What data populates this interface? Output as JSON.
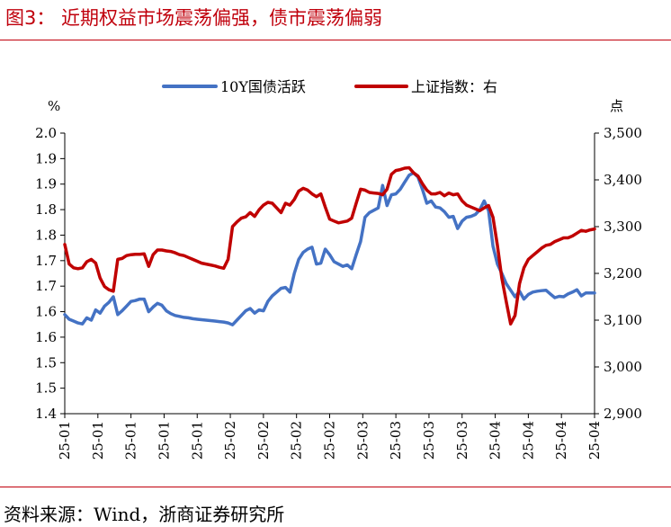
{
  "header": {
    "title": "图3：  近期权益市场震荡偏强，债市震荡偏弱"
  },
  "footer": {
    "source": "资料来源：Wind，浙商证券研究所"
  },
  "colors": {
    "series_10y": "#4472C4",
    "series_sh": "#C00000",
    "accent": "#C0000C"
  },
  "chart_data": {
    "type": "line",
    "legend_position": "top",
    "grid": false,
    "left_unit": "%",
    "right_unit": "点",
    "left_axis": {
      "ticks": [
        "2.0",
        "1.9",
        "1.9",
        "1.8",
        "1.8",
        "1.7",
        "1.7",
        "1.6",
        "1.6",
        "1.5",
        "1.5",
        "1.4"
      ],
      "ylim": [
        1.4,
        2.0
      ]
    },
    "right_axis": {
      "ticks": [
        "3,500",
        "3,400",
        "3,300",
        "3,200",
        "3,100",
        "3,000",
        "2,900"
      ],
      "ylim": [
        2900,
        3500
      ]
    },
    "x_ticks": [
      "25-01",
      "25-01",
      "25-01",
      "25-01",
      "25-01",
      "25-02",
      "25-02",
      "25-02",
      "25-02",
      "25-03",
      "25-03",
      "25-03",
      "25-03",
      "25-04",
      "25-04",
      "25-04",
      "25-04"
    ],
    "series": [
      {
        "name": "10Y国债活跃",
        "axis": "left",
        "points": [
          [
            0,
            1.612
          ],
          [
            1,
            1.602
          ],
          [
            2,
            1.598
          ],
          [
            3,
            1.594
          ],
          [
            4,
            1.592
          ],
          [
            5,
            1.605
          ],
          [
            6,
            1.6
          ],
          [
            7,
            1.622
          ],
          [
            8,
            1.615
          ],
          [
            9,
            1.63
          ],
          [
            10,
            1.638
          ],
          [
            11,
            1.65
          ],
          [
            12,
            1.612
          ],
          [
            13,
            1.62
          ],
          [
            14,
            1.63
          ],
          [
            15,
            1.64
          ],
          [
            16,
            1.642
          ],
          [
            17,
            1.645
          ],
          [
            18,
            1.645
          ],
          [
            19,
            1.618
          ],
          [
            20,
            1.628
          ],
          [
            21,
            1.636
          ],
          [
            22,
            1.632
          ],
          [
            23,
            1.62
          ],
          [
            24,
            1.614
          ],
          [
            25,
            1.61
          ],
          [
            26,
            1.608
          ],
          [
            27,
            1.606
          ],
          [
            28,
            1.605
          ],
          [
            29,
            1.603
          ],
          [
            30,
            1.602
          ],
          [
            31,
            1.601
          ],
          [
            32,
            1.6
          ],
          [
            33,
            1.599
          ],
          [
            34,
            1.598
          ],
          [
            35,
            1.597
          ],
          [
            36,
            1.596
          ],
          [
            37,
            1.594
          ],
          [
            38,
            1.59
          ],
          [
            39,
            1.6
          ],
          [
            40,
            1.61
          ],
          [
            41,
            1.62
          ],
          [
            42,
            1.625
          ],
          [
            43,
            1.615
          ],
          [
            44,
            1.622
          ],
          [
            45,
            1.62
          ],
          [
            46,
            1.64
          ],
          [
            47,
            1.652
          ],
          [
            48,
            1.66
          ],
          [
            49,
            1.668
          ],
          [
            50,
            1.67
          ],
          [
            51,
            1.66
          ],
          [
            52,
            1.7
          ],
          [
            53,
            1.73
          ],
          [
            54,
            1.745
          ],
          [
            55,
            1.752
          ],
          [
            56,
            1.756
          ],
          [
            57,
            1.72
          ],
          [
            58,
            1.722
          ],
          [
            59,
            1.752
          ],
          [
            60,
            1.74
          ],
          [
            61,
            1.725
          ],
          [
            62,
            1.72
          ],
          [
            63,
            1.715
          ],
          [
            64,
            1.718
          ],
          [
            65,
            1.71
          ],
          [
            66,
            1.74
          ],
          [
            67,
            1.768
          ],
          [
            68,
            1.82
          ],
          [
            69,
            1.83
          ],
          [
            70,
            1.835
          ],
          [
            71,
            1.84
          ],
          [
            72,
            1.888
          ],
          [
            73,
            1.845
          ],
          [
            74,
            1.868
          ],
          [
            75,
            1.87
          ],
          [
            76,
            1.88
          ],
          [
            77,
            1.895
          ],
          [
            78,
            1.91
          ],
          [
            79,
            1.915
          ],
          [
            80,
            1.906
          ],
          [
            81,
            1.88
          ],
          [
            82,
            1.85
          ],
          [
            83,
            1.855
          ],
          [
            84,
            1.842
          ],
          [
            85,
            1.84
          ],
          [
            86,
            1.832
          ],
          [
            87,
            1.82
          ],
          [
            88,
            1.822
          ],
          [
            89,
            1.796
          ],
          [
            90,
            1.812
          ],
          [
            91,
            1.82
          ],
          [
            92,
            1.822
          ],
          [
            93,
            1.826
          ],
          [
            94,
            1.836
          ],
          [
            95,
            1.855
          ],
          [
            96,
            1.834
          ],
          [
            97,
            1.758
          ],
          [
            98,
            1.72
          ],
          [
            99,
            1.7
          ],
          [
            100,
            1.678
          ],
          [
            101,
            1.664
          ],
          [
            102,
            1.65
          ],
          [
            103,
            1.662
          ],
          [
            104,
            1.645
          ],
          [
            105,
            1.655
          ],
          [
            106,
            1.66
          ],
          [
            107,
            1.662
          ],
          [
            108,
            1.663
          ],
          [
            109,
            1.664
          ],
          [
            110,
            1.656
          ],
          [
            111,
            1.648
          ],
          [
            112,
            1.651
          ],
          [
            113,
            1.65
          ],
          [
            114,
            1.656
          ],
          [
            115,
            1.66
          ],
          [
            116,
            1.665
          ],
          [
            117,
            1.652
          ],
          [
            118,
            1.658
          ],
          [
            119,
            1.658
          ],
          [
            120,
            1.658
          ]
        ]
      },
      {
        "name": "上证指数：右",
        "axis": "right",
        "points": [
          [
            0,
            3262
          ],
          [
            1,
            3220
          ],
          [
            2,
            3212
          ],
          [
            3,
            3210
          ],
          [
            4,
            3212
          ],
          [
            5,
            3225
          ],
          [
            6,
            3230
          ],
          [
            7,
            3222
          ],
          [
            8,
            3190
          ],
          [
            9,
            3172
          ],
          [
            10,
            3165
          ],
          [
            11,
            3162
          ],
          [
            12,
            3230
          ],
          [
            13,
            3232
          ],
          [
            14,
            3238
          ],
          [
            15,
            3240
          ],
          [
            16,
            3241
          ],
          [
            17,
            3241
          ],
          [
            18,
            3242
          ],
          [
            19,
            3215
          ],
          [
            20,
            3240
          ],
          [
            21,
            3250
          ],
          [
            22,
            3250
          ],
          [
            23,
            3248
          ],
          [
            24,
            3247
          ],
          [
            25,
            3244
          ],
          [
            26,
            3240
          ],
          [
            27,
            3238
          ],
          [
            28,
            3234
          ],
          [
            29,
            3230
          ],
          [
            30,
            3226
          ],
          [
            31,
            3222
          ],
          [
            32,
            3220
          ],
          [
            33,
            3218
          ],
          [
            34,
            3216
          ],
          [
            35,
            3213
          ],
          [
            36,
            3211
          ],
          [
            37,
            3230
          ],
          [
            38,
            3300
          ],
          [
            39,
            3310
          ],
          [
            40,
            3318
          ],
          [
            41,
            3321
          ],
          [
            42,
            3330
          ],
          [
            43,
            3322
          ],
          [
            44,
            3336
          ],
          [
            45,
            3346
          ],
          [
            46,
            3352
          ],
          [
            47,
            3350
          ],
          [
            48,
            3340
          ],
          [
            49,
            3330
          ],
          [
            50,
            3350
          ],
          [
            51,
            3346
          ],
          [
            52,
            3358
          ],
          [
            53,
            3376
          ],
          [
            54,
            3382
          ],
          [
            55,
            3378
          ],
          [
            56,
            3370
          ],
          [
            57,
            3364
          ],
          [
            58,
            3370
          ],
          [
            59,
            3342
          ],
          [
            60,
            3316
          ],
          [
            61,
            3312
          ],
          [
            62,
            3308
          ],
          [
            63,
            3310
          ],
          [
            64,
            3312
          ],
          [
            65,
            3318
          ],
          [
            66,
            3350
          ],
          [
            67,
            3380
          ],
          [
            68,
            3378
          ],
          [
            69,
            3373
          ],
          [
            70,
            3372
          ],
          [
            71,
            3371
          ],
          [
            72,
            3368
          ],
          [
            73,
            3380
          ],
          [
            74,
            3412
          ],
          [
            75,
            3420
          ],
          [
            76,
            3422
          ],
          [
            77,
            3425
          ],
          [
            78,
            3426
          ],
          [
            79,
            3415
          ],
          [
            80,
            3408
          ],
          [
            81,
            3392
          ],
          [
            82,
            3378
          ],
          [
            83,
            3370
          ],
          [
            84,
            3370
          ],
          [
            85,
            3373
          ],
          [
            86,
            3366
          ],
          [
            87,
            3372
          ],
          [
            88,
            3368
          ],
          [
            89,
            3370
          ],
          [
            90,
            3355
          ],
          [
            91,
            3346
          ],
          [
            92,
            3342
          ],
          [
            93,
            3338
          ],
          [
            94,
            3334
          ],
          [
            95,
            3340
          ],
          [
            96,
            3345
          ],
          [
            97,
            3320
          ],
          [
            98,
            3260
          ],
          [
            99,
            3190
          ],
          [
            100,
            3140
          ],
          [
            101,
            3092
          ],
          [
            102,
            3110
          ],
          [
            103,
            3178
          ],
          [
            104,
            3212
          ],
          [
            105,
            3230
          ],
          [
            106,
            3238
          ],
          [
            107,
            3246
          ],
          [
            108,
            3254
          ],
          [
            109,
            3260
          ],
          [
            110,
            3262
          ],
          [
            111,
            3268
          ],
          [
            112,
            3272
          ],
          [
            113,
            3276
          ],
          [
            114,
            3276
          ],
          [
            115,
            3280
          ],
          [
            116,
            3286
          ],
          [
            117,
            3292
          ],
          [
            118,
            3290
          ],
          [
            119,
            3293
          ],
          [
            120,
            3295
          ]
        ]
      }
    ]
  }
}
